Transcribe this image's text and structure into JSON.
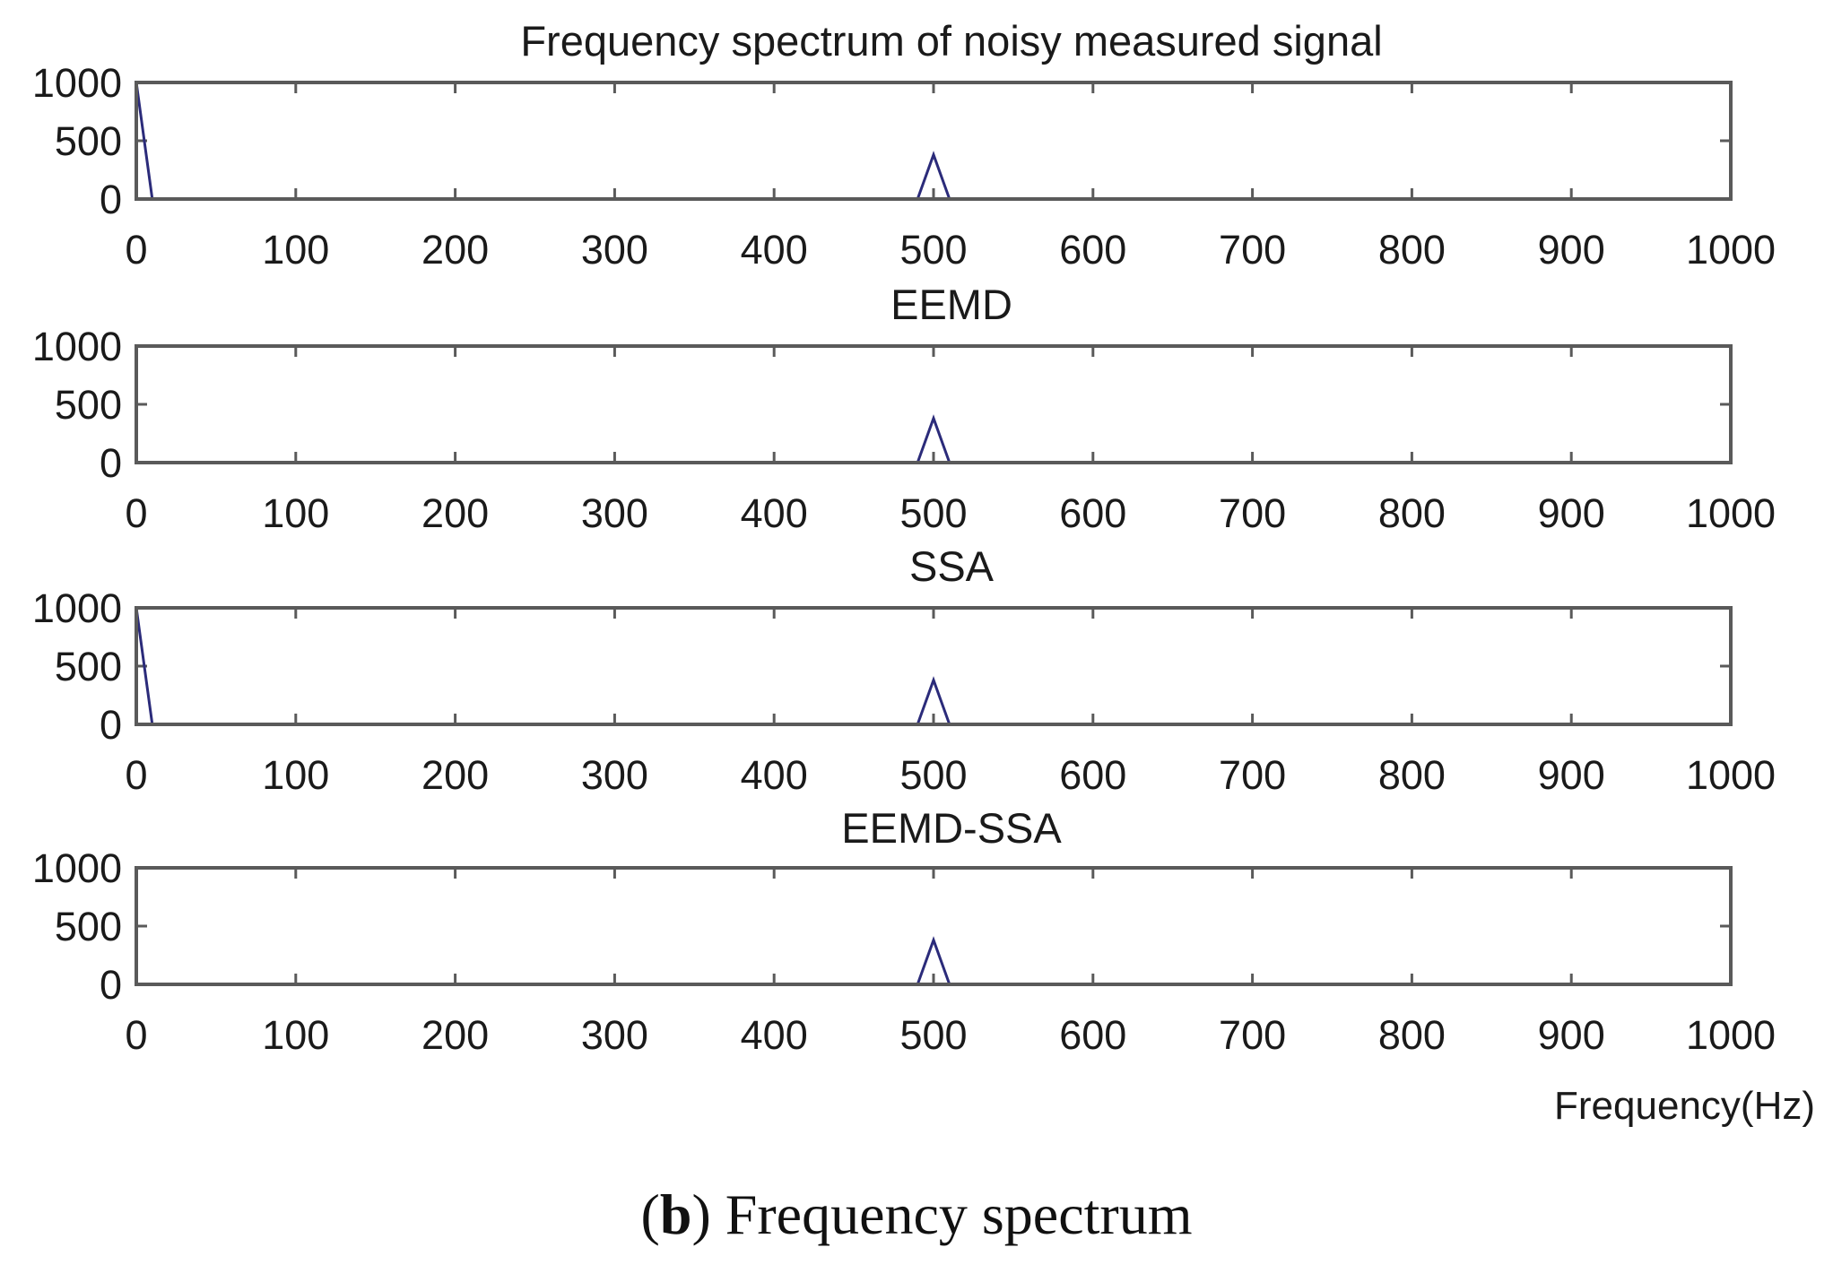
{
  "chart_data": [
    {
      "type": "line",
      "title": "Frequency spectrum of noisy measured signal",
      "xlim": [
        0,
        1000
      ],
      "ylim": [
        0,
        1000
      ],
      "xticks": [
        "0",
        "100",
        "200",
        "300",
        "400",
        "500",
        "600",
        "700",
        "800",
        "900",
        "1000"
      ],
      "yticks": [
        "0",
        "500",
        "1000"
      ],
      "series": [
        {
          "x": [
            0,
            10,
            490,
            500,
            510,
            1000
          ],
          "y": [
            1000,
            0,
            0,
            380,
            0,
            0
          ]
        }
      ]
    },
    {
      "type": "line",
      "title": "EEMD",
      "xlim": [
        0,
        1000
      ],
      "ylim": [
        0,
        1000
      ],
      "xticks": [
        "0",
        "100",
        "200",
        "300",
        "400",
        "500",
        "600",
        "700",
        "800",
        "900",
        "1000"
      ],
      "yticks": [
        "0",
        "500",
        "1000"
      ],
      "series": [
        {
          "x": [
            0,
            490,
            500,
            510,
            1000
          ],
          "y": [
            0,
            0,
            380,
            0,
            0
          ]
        }
      ]
    },
    {
      "type": "line",
      "title": "SSA",
      "xlim": [
        0,
        1000
      ],
      "ylim": [
        0,
        1000
      ],
      "xticks": [
        "0",
        "100",
        "200",
        "300",
        "400",
        "500",
        "600",
        "700",
        "800",
        "900",
        "1000"
      ],
      "yticks": [
        "0",
        "500",
        "1000"
      ],
      "series": [
        {
          "x": [
            0,
            10,
            490,
            500,
            510,
            1000
          ],
          "y": [
            1000,
            0,
            0,
            380,
            0,
            0
          ]
        }
      ]
    },
    {
      "type": "line",
      "title": "EEMD-SSA",
      "xlabel": "Frequency(Hz)",
      "xlim": [
        0,
        1000
      ],
      "ylim": [
        0,
        1000
      ],
      "xticks": [
        "0",
        "100",
        "200",
        "300",
        "400",
        "500",
        "600",
        "700",
        "800",
        "900",
        "1000"
      ],
      "yticks": [
        "0",
        "500",
        "1000"
      ],
      "series": [
        {
          "x": [
            0,
            490,
            500,
            510,
            1000
          ],
          "y": [
            0,
            0,
            380,
            0,
            0
          ]
        }
      ]
    }
  ],
  "style": {
    "line_color": "#2b2b7a",
    "axes_color": "#5a5a5a",
    "grid": false
  },
  "caption": {
    "label": "(b)",
    "letter": "b",
    "text": "Frequency spectrum"
  }
}
